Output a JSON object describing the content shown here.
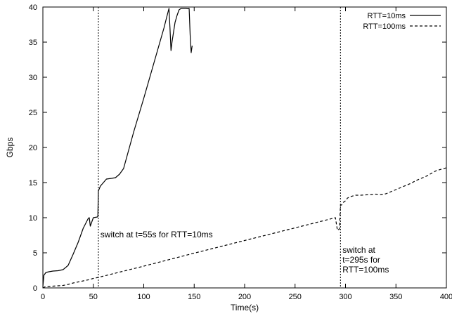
{
  "chart_data": {
    "type": "line",
    "title": "",
    "xlabel": "Time(s)",
    "ylabel": "Gbps",
    "xlim": [
      0,
      400
    ],
    "ylim": [
      0,
      40
    ],
    "xticks": [
      0,
      50,
      100,
      150,
      200,
      250,
      300,
      350,
      400
    ],
    "yticks": [
      0,
      5,
      10,
      15,
      20,
      25,
      30,
      35,
      40
    ],
    "grid": false,
    "legend_position": "top-right",
    "series": [
      {
        "name": "RTT=10ms",
        "style": "solid",
        "color": "#000000",
        "points": [
          [
            0,
            0.2
          ],
          [
            1,
            1.8
          ],
          [
            3,
            2.2
          ],
          [
            6,
            2.3
          ],
          [
            10,
            2.4
          ],
          [
            15,
            2.45
          ],
          [
            20,
            2.6
          ],
          [
            25,
            3.2
          ],
          [
            30,
            4.8
          ],
          [
            35,
            6.5
          ],
          [
            40,
            8.5
          ],
          [
            45,
            9.9
          ],
          [
            46,
            10.0
          ],
          [
            47,
            8.8
          ],
          [
            48,
            9.2
          ],
          [
            50,
            10.0
          ],
          [
            52,
            10.05
          ],
          [
            54,
            10.1
          ],
          [
            54.5,
            10.2
          ],
          [
            55,
            13.8
          ],
          [
            57,
            14.5
          ],
          [
            60,
            15.0
          ],
          [
            63,
            15.5
          ],
          [
            68,
            15.6
          ],
          [
            72,
            15.7
          ],
          [
            76,
            16.2
          ],
          [
            80,
            17.0
          ],
          [
            85,
            19.6
          ],
          [
            90,
            22.2
          ],
          [
            95,
            24.6
          ],
          [
            100,
            27.0
          ],
          [
            105,
            29.5
          ],
          [
            110,
            32.0
          ],
          [
            115,
            34.5
          ],
          [
            120,
            37.0
          ],
          [
            123,
            38.7
          ],
          [
            125,
            39.8
          ],
          [
            126,
            37.0
          ],
          [
            127,
            33.8
          ],
          [
            128,
            35.0
          ],
          [
            131,
            37.8
          ],
          [
            133,
            38.8
          ],
          [
            135,
            39.6
          ],
          [
            137,
            39.8
          ],
          [
            140,
            39.8
          ],
          [
            142,
            39.8
          ],
          [
            144,
            39.75
          ],
          [
            145,
            39.8
          ],
          [
            146,
            36.0
          ],
          [
            147,
            33.5
          ],
          [
            148,
            34.5
          ]
        ]
      },
      {
        "name": "RTT=100ms",
        "style": "dashed",
        "color": "#000000",
        "points": [
          [
            0,
            0.0
          ],
          [
            2,
            0.15
          ],
          [
            5,
            0.2
          ],
          [
            10,
            0.25
          ],
          [
            15,
            0.3
          ],
          [
            20,
            0.35
          ],
          [
            25,
            0.5
          ],
          [
            30,
            0.7
          ],
          [
            35,
            0.85
          ],
          [
            40,
            1.0
          ],
          [
            45,
            1.15
          ],
          [
            50,
            1.35
          ],
          [
            55,
            1.5
          ],
          [
            100,
            3.1
          ],
          [
            150,
            4.95
          ],
          [
            200,
            6.75
          ],
          [
            250,
            8.55
          ],
          [
            290,
            10.0
          ],
          [
            292,
            8.2
          ],
          [
            294,
            8.4
          ],
          [
            295,
            11.8
          ],
          [
            296,
            11.8
          ],
          [
            298,
            12.2
          ],
          [
            300,
            12.4
          ],
          [
            302,
            12.8
          ],
          [
            305,
            13.0
          ],
          [
            310,
            13.2
          ],
          [
            315,
            13.2
          ],
          [
            320,
            13.25
          ],
          [
            325,
            13.3
          ],
          [
            330,
            13.35
          ],
          [
            335,
            13.3
          ],
          [
            340,
            13.4
          ],
          [
            345,
            13.7
          ],
          [
            350,
            14.0
          ],
          [
            355,
            14.3
          ],
          [
            360,
            14.6
          ],
          [
            365,
            14.9
          ],
          [
            370,
            15.3
          ],
          [
            375,
            15.6
          ],
          [
            380,
            15.9
          ],
          [
            385,
            16.3
          ],
          [
            390,
            16.7
          ],
          [
            395,
            16.9
          ],
          [
            400,
            17.1
          ]
        ]
      }
    ],
    "vlines": [
      55,
      295
    ],
    "annotations": [
      {
        "lines": [
          "switch at t=55s for RTT=10ms"
        ],
        "x": 57,
        "y": 7.2
      },
      {
        "lines": [
          "switch at",
          "t=295s for",
          "RTT=100ms"
        ],
        "x": 297,
        "y": 5.0
      }
    ]
  }
}
